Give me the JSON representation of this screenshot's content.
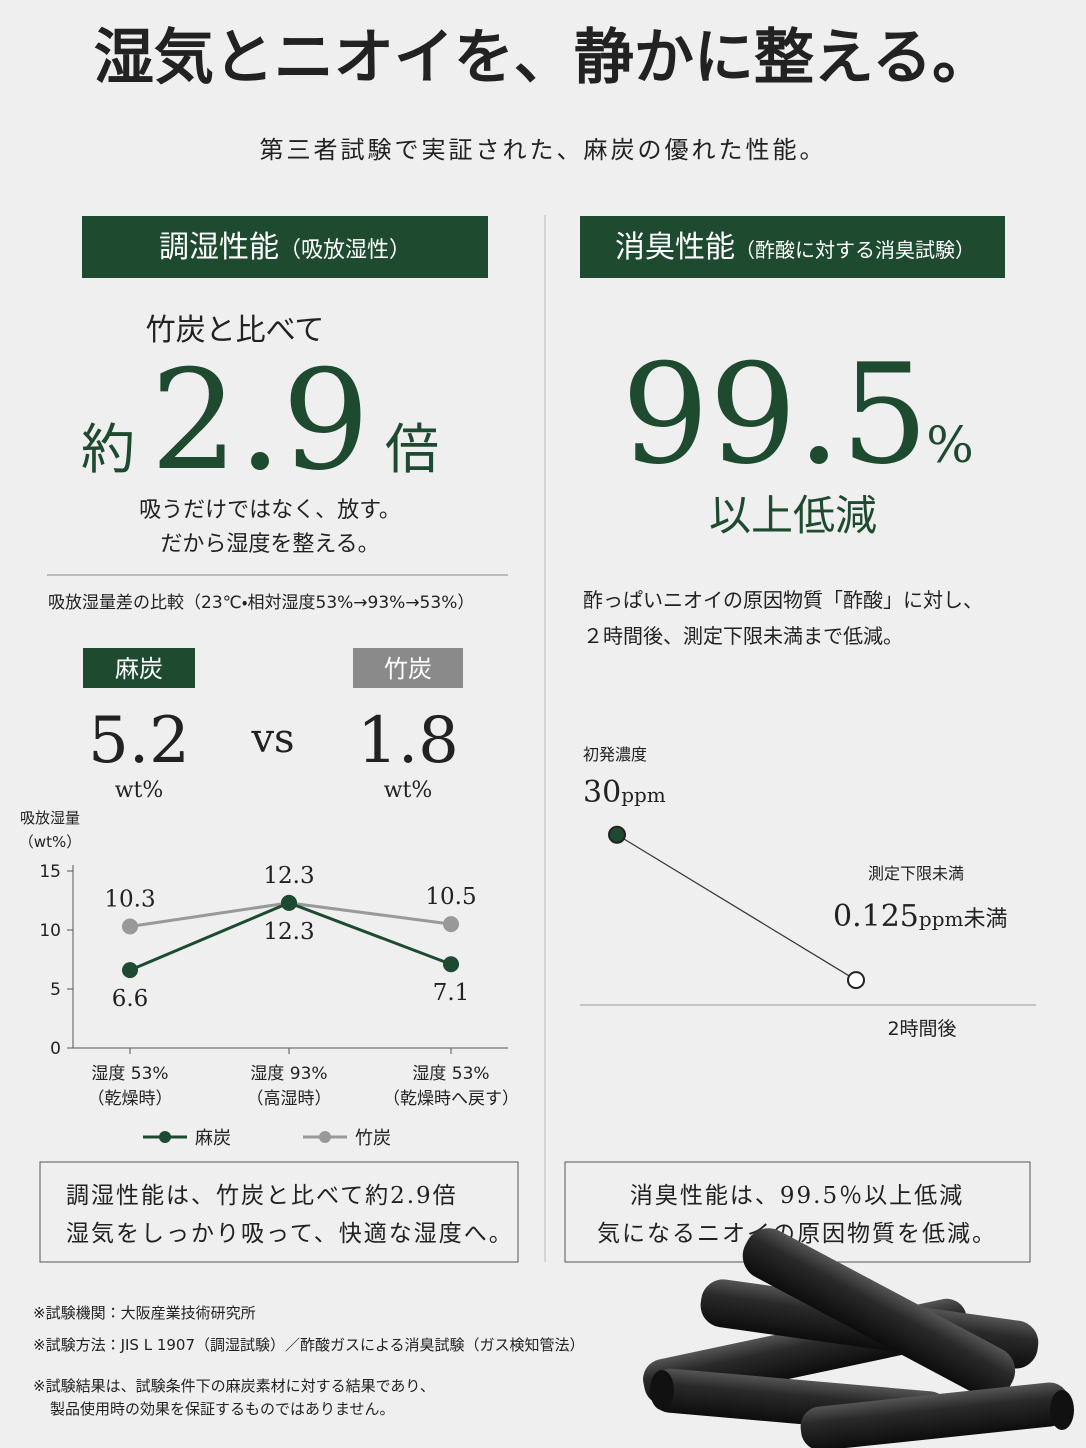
{
  "header": {
    "title": "湿気とニオイを、静かに整える。",
    "subtitle": "第三者試験で実証された、麻炭の優れた性能。"
  },
  "humidity": {
    "heading": "調湿性能",
    "heading_note": "（吸放湿性）",
    "lead": "竹炭と比べて",
    "prefix": "約",
    "ratio": 2.9,
    "suffix": "倍",
    "body": [
      "吸うだけではなく、放す。",
      "だから湿度を整える。"
    ],
    "comparison_title": "吸放湿量差の比較（23℃・相対湿度53%→93%→53%）",
    "hemp": {
      "label": "麻炭",
      "value": 5.2,
      "unit": "wt%"
    },
    "vs": "vs",
    "bamboo": {
      "label": "竹炭",
      "value": 1.8,
      "unit": "wt%"
    },
    "summary": [
      "調湿性能は、竹炭と比べて約2.9倍",
      "湿気をしっかり吸って、快適な湿度へ。"
    ]
  },
  "deodorizing": {
    "heading": "消臭性能",
    "heading_note": "（酢酸に対する消臭試験）",
    "rate": 99.5,
    "rate_unit": "%",
    "result": "以上低減",
    "body": [
      "酢っぱいニオイの原因物質「酢酸」に対し、",
      "２時間後、測定下限未満まで低減。"
    ],
    "summary": [
      "消臭性能は、99.5％以上低減",
      "気になるニオイの原因物質を低減。"
    ]
  },
  "notes": [
    "※試験機関：大阪産業技術研究所",
    "※試験方法：JIS L 1907（調湿試験）／酢酸ガスによる消臭試験（ガス検知管法）",
    "※試験結果は、試験条件下の麻炭素材に対する結果であり、",
    "製品使用時の効果を保証するものではありません。"
  ],
  "chart_data": [
    {
      "type": "line",
      "y_label": [
        "吸放湿量",
        "（wt%）"
      ],
      "categories": [
        "湿度 53%",
        "湿度 93%",
        "湿度 53%"
      ],
      "category_notes": [
        "（乾燥時）",
        "（高湿時）",
        "（乾燥時へ戻す）"
      ],
      "series": [
        {
          "name": "麻炭",
          "color": "#1d4a30",
          "values": [
            6.6,
            12.3,
            7.1
          ]
        },
        {
          "name": "竹炭",
          "color": "#999999",
          "values": [
            10.3,
            12.3,
            10.5
          ]
        }
      ],
      "ylim": [
        0,
        15
      ],
      "yticks": [
        0,
        5,
        10,
        15
      ],
      "legend": "bottom"
    },
    {
      "type": "line",
      "categories": [
        null,
        "2時間後"
      ],
      "values": [
        30,
        0.125
      ],
      "point_titles": [
        "初発濃度",
        "測定下限未満"
      ],
      "unit": "ppm",
      "below_limit": "未満",
      "color": "#1d4a30",
      "ylim": [
        -5,
        32
      ]
    }
  ]
}
